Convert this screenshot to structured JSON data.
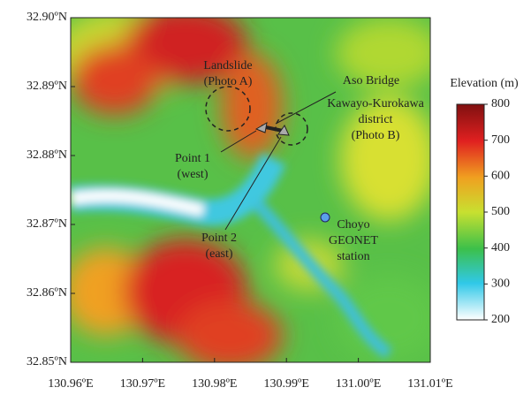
{
  "map": {
    "x_ticks": [
      "130.96ºE",
      "130.97ºE",
      "130.98ºE",
      "130.99ºE",
      "131.00ºE",
      "131.01ºE"
    ],
    "y_ticks": [
      "32.90ºN",
      "32.89ºN",
      "32.88ºN",
      "32.87ºN",
      "32.86ºN",
      "32.85ºN"
    ],
    "annotations": {
      "landslide": [
        "Landslide",
        "(Photo A)"
      ],
      "aso_bridge": "Aso Bridge",
      "district": [
        "Kawayo-Kurokawa",
        "district",
        "(Photo B)"
      ],
      "point1": [
        "Point 1",
        "(west)"
      ],
      "point2": [
        "Point 2",
        "(east)"
      ],
      "station": [
        "Choyo",
        "GEONET",
        "station"
      ]
    },
    "legend": {
      "title": "Elevation (m)",
      "ticks": [
        200,
        300,
        400,
        500,
        600,
        700,
        800
      ]
    }
  }
}
